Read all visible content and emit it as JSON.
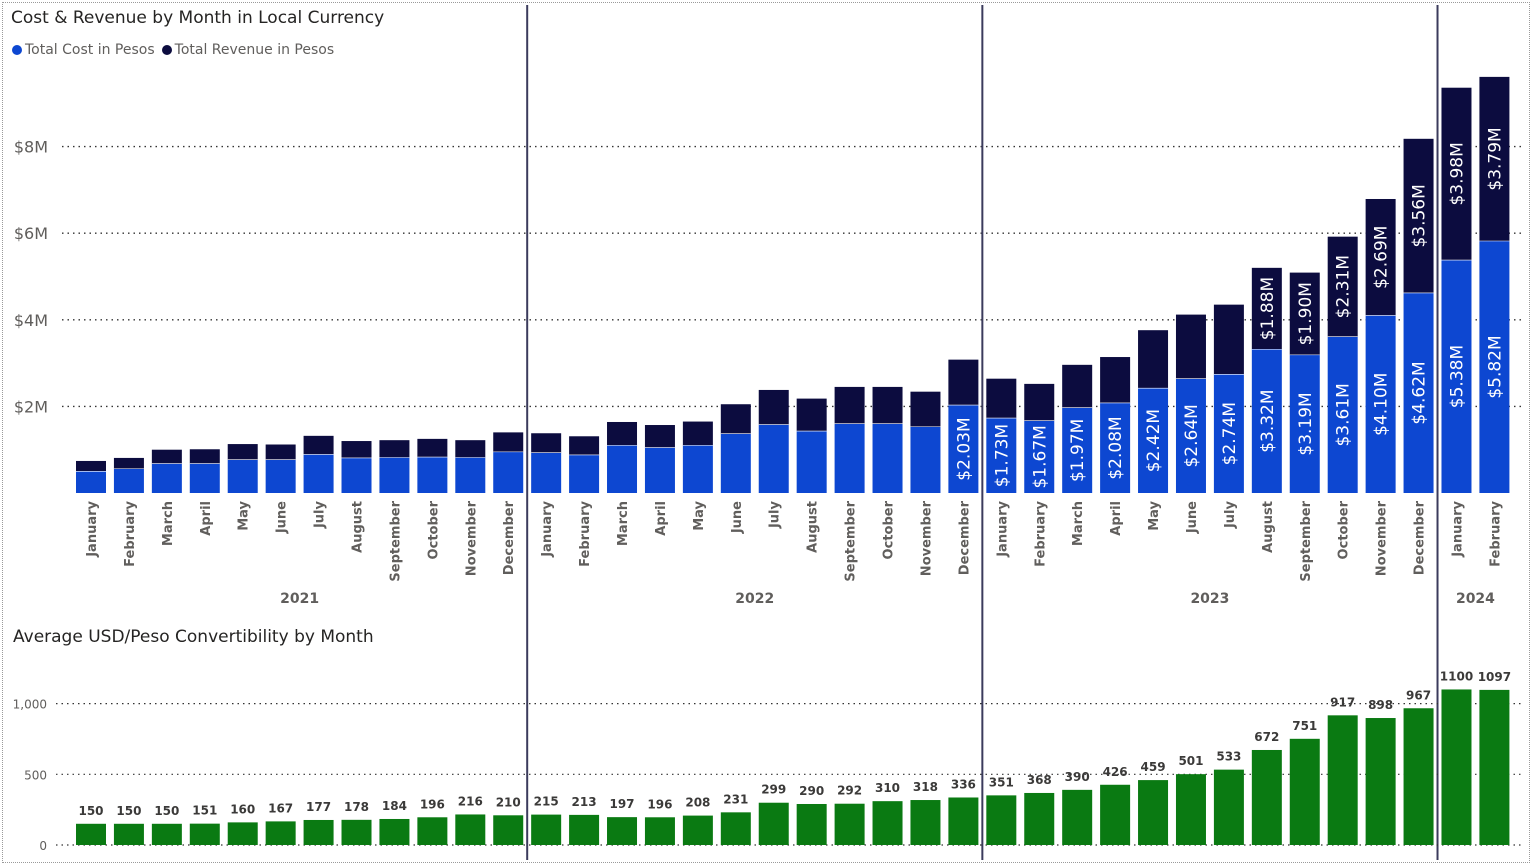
{
  "colors": {
    "cost": "#0d47d1",
    "revenue": "#0c0c3f",
    "rate": "#0a7a12",
    "divider": "#3b3b5c",
    "grid": "#333333"
  },
  "chart_data": [
    {
      "type": "bar",
      "stacked": true,
      "title": "Cost & Revenue by Month in Local Currency",
      "legend": {
        "position": "top-left",
        "labels": [
          "Total Cost in Pesos",
          "Total Revenue in Pesos"
        ]
      },
      "years": [
        "2021",
        "2022",
        "2023",
        "2024"
      ],
      "categories": [
        "January",
        "February",
        "March",
        "April",
        "May",
        "June",
        "July",
        "August",
        "September",
        "October",
        "November",
        "December",
        "January",
        "February",
        "March",
        "April",
        "May",
        "June",
        "July",
        "August",
        "September",
        "October",
        "November",
        "December",
        "January",
        "February",
        "March",
        "April",
        "May",
        "June",
        "July",
        "August",
        "September",
        "October",
        "November",
        "December",
        "January",
        "February"
      ],
      "year_of_category": [
        0,
        0,
        0,
        0,
        0,
        0,
        0,
        0,
        0,
        0,
        0,
        0,
        1,
        1,
        1,
        1,
        1,
        1,
        1,
        1,
        1,
        1,
        1,
        1,
        2,
        2,
        2,
        2,
        2,
        2,
        2,
        2,
        2,
        2,
        2,
        2,
        3,
        3
      ],
      "series": [
        {
          "name": "Total Cost in Pesos",
          "values": [
            0.5,
            0.56,
            0.68,
            0.68,
            0.77,
            0.77,
            0.89,
            0.81,
            0.82,
            0.83,
            0.82,
            0.95,
            0.93,
            0.88,
            1.1,
            1.05,
            1.1,
            1.37,
            1.58,
            1.43,
            1.6,
            1.6,
            1.53,
            2.03,
            1.73,
            1.67,
            1.97,
            2.08,
            2.42,
            2.64,
            2.74,
            3.32,
            3.19,
            3.61,
            4.1,
            4.62,
            5.38,
            5.82
          ]
        },
        {
          "name": "Total Revenue in Pesos",
          "values": [
            0.24,
            0.25,
            0.32,
            0.33,
            0.36,
            0.35,
            0.43,
            0.39,
            0.4,
            0.42,
            0.4,
            0.45,
            0.45,
            0.43,
            0.54,
            0.52,
            0.55,
            0.68,
            0.8,
            0.75,
            0.85,
            0.85,
            0.81,
            1.05,
            0.91,
            0.85,
            0.99,
            1.06,
            1.34,
            1.48,
            1.61,
            1.88,
            1.9,
            2.31,
            2.69,
            3.56,
            3.98,
            3.79
          ]
        }
      ],
      "value_labels_shown_from_index": 23,
      "cost_labels": [
        "$2.03M",
        "$1.73M",
        "$1.67M",
        "$1.97M",
        "$2.08M",
        "$2.42M",
        "$2.64M",
        "$2.74M",
        "$3.32M",
        "$3.19M",
        "$3.61M",
        "$4.10M",
        "$4.62M",
        "$5.38M",
        "$5.82M"
      ],
      "revenue_labels": [
        "$1.88M",
        "$1.90M",
        "$2.31M",
        "$2.69M",
        "$3.56M",
        "$3.98M",
        "$3.79M"
      ],
      "revenue_labels_from_index": 31,
      "y_ticks": [
        "$2M",
        "$4M",
        "$6M",
        "$8M"
      ],
      "y_tick_values": [
        2,
        4,
        6,
        8
      ],
      "ylim": [
        0,
        10
      ],
      "grid": true
    },
    {
      "type": "bar",
      "title": "Average USD/Peso Convertibility by Month",
      "values": [
        150,
        150,
        150,
        151,
        160,
        167,
        177,
        178,
        184,
        196,
        216,
        210,
        215,
        213,
        197,
        196,
        208,
        231,
        299,
        290,
        292,
        310,
        318,
        336,
        351,
        368,
        390,
        426,
        459,
        501,
        533,
        672,
        751,
        917,
        898,
        967,
        1100,
        1097
      ],
      "labels": [
        "150",
        "150",
        "150",
        "151",
        "160",
        "167",
        "177",
        "178",
        "184",
        "196",
        "216",
        "210",
        "215",
        "213",
        "197",
        "196",
        "208",
        "231",
        "299",
        "290",
        "292",
        "310",
        "318",
        "336",
        "351",
        "368",
        "390",
        "426",
        "459",
        "501",
        "533",
        "672",
        "751",
        "917",
        "898",
        "967",
        "1100",
        "1097"
      ],
      "y_ticks": [
        "0",
        "500",
        "1,000"
      ],
      "y_tick_values": [
        0,
        500,
        1000
      ],
      "ylim": [
        0,
        1150
      ],
      "grid": true
    }
  ]
}
